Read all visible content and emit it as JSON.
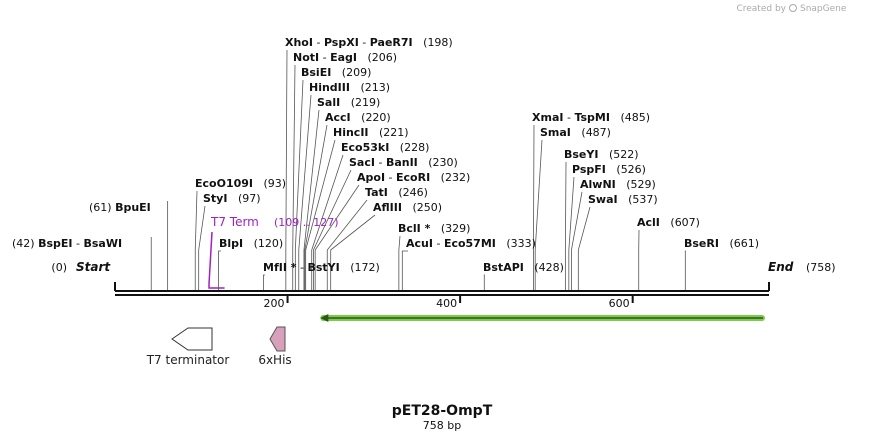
{
  "credit": {
    "text": "Created by",
    "brand": "SnapGene"
  },
  "plasmid": {
    "name": "pET28-OmpT",
    "size_text": "758 bp",
    "length": 758
  },
  "ends": {
    "start_label": "Start",
    "start_pos": "(0)",
    "end_label": "End",
    "end_pos": "(758)"
  },
  "axis": {
    "ticks": [
      "200",
      "400",
      "600"
    ]
  },
  "sites": [
    {
      "parts": [
        {
          "t": "BspEI",
          "b": true
        },
        {
          "t": " - ",
          "b": false
        },
        {
          "t": "BsaWI",
          "b": true
        },
        {
          "t": "   (42)",
          "b": false,
          "first": true
        }
      ],
      "bp": 42
    },
    {
      "parts": [
        {
          "t": "BpuEI",
          "b": true
        },
        {
          "t": "   (61)",
          "b": false,
          "first": true
        }
      ],
      "bp": 61
    },
    {
      "parts": [
        {
          "t": "EcoO109I",
          "b": true
        },
        {
          "t": "   (93)",
          "b": false
        }
      ],
      "bp": 93
    },
    {
      "parts": [
        {
          "t": "StyI",
          "b": true
        },
        {
          "t": "   (97)",
          "b": false
        }
      ],
      "bp": 97
    },
    {
      "parts": [
        {
          "t": "BlpI",
          "b": true
        },
        {
          "t": "   (120)",
          "b": false
        }
      ],
      "bp": 120
    },
    {
      "parts": [
        {
          "t": "MfII *",
          "b": true
        },
        {
          "t": " - ",
          "b": false
        },
        {
          "t": "BstYI",
          "b": true
        },
        {
          "t": "   (172)",
          "b": false
        }
      ],
      "bp": 172
    },
    {
      "parts": [
        {
          "t": "XhoI",
          "b": true
        },
        {
          "t": " - ",
          "b": false
        },
        {
          "t": "PspXI",
          "b": true
        },
        {
          "t": " - ",
          "b": false
        },
        {
          "t": "PaeR7I",
          "b": true
        },
        {
          "t": "   (198)",
          "b": false
        }
      ],
      "bp": 198
    },
    {
      "parts": [
        {
          "t": "NotI",
          "b": true
        },
        {
          "t": " - ",
          "b": false
        },
        {
          "t": "EagI",
          "b": true
        },
        {
          "t": "   (206)",
          "b": false
        }
      ],
      "bp": 206
    },
    {
      "parts": [
        {
          "t": "BsiEI",
          "b": true
        },
        {
          "t": "   (209)",
          "b": false
        }
      ],
      "bp": 209
    },
    {
      "parts": [
        {
          "t": "HindIII",
          "b": true
        },
        {
          "t": "   (213)",
          "b": false
        }
      ],
      "bp": 213
    },
    {
      "parts": [
        {
          "t": "SalI",
          "b": true
        },
        {
          "t": "   (219)",
          "b": false
        }
      ],
      "bp": 219
    },
    {
      "parts": [
        {
          "t": "AccI",
          "b": true
        },
        {
          "t": "   (220)",
          "b": false
        }
      ],
      "bp": 220
    },
    {
      "parts": [
        {
          "t": "HincII",
          "b": true
        },
        {
          "t": "   (221)",
          "b": false
        }
      ],
      "bp": 221
    },
    {
      "parts": [
        {
          "t": "Eco53kI",
          "b": true
        },
        {
          "t": "   (228)",
          "b": false
        }
      ],
      "bp": 228
    },
    {
      "parts": [
        {
          "t": "SacI",
          "b": true
        },
        {
          "t": " - ",
          "b": false
        },
        {
          "t": "BanII",
          "b": true
        },
        {
          "t": "   (230)",
          "b": false
        }
      ],
      "bp": 230
    },
    {
      "parts": [
        {
          "t": "ApoI",
          "b": true
        },
        {
          "t": " - ",
          "b": false
        },
        {
          "t": "EcoRI",
          "b": true
        },
        {
          "t": "   (232)",
          "b": false
        }
      ],
      "bp": 232
    },
    {
      "parts": [
        {
          "t": "TatI",
          "b": true
        },
        {
          "t": "   (246)",
          "b": false
        }
      ],
      "bp": 246
    },
    {
      "parts": [
        {
          "t": "AflIII",
          "b": true
        },
        {
          "t": "   (250)",
          "b": false
        }
      ],
      "bp": 250
    },
    {
      "parts": [
        {
          "t": "BclI *",
          "b": true
        },
        {
          "t": "   (329)",
          "b": false
        }
      ],
      "bp": 329
    },
    {
      "parts": [
        {
          "t": "AcuI",
          "b": true
        },
        {
          "t": " - ",
          "b": false
        },
        {
          "t": "Eco57MI",
          "b": true
        },
        {
          "t": "   (333)",
          "b": false
        }
      ],
      "bp": 333
    },
    {
      "parts": [
        {
          "t": "BstAPI",
          "b": true
        },
        {
          "t": "   (428)",
          "b": false
        }
      ],
      "bp": 428
    },
    {
      "parts": [
        {
          "t": "XmaI",
          "b": true
        },
        {
          "t": " - ",
          "b": false
        },
        {
          "t": "TspMI",
          "b": true
        },
        {
          "t": "   (485)",
          "b": false
        }
      ],
      "bp": 485
    },
    {
      "parts": [
        {
          "t": "SmaI",
          "b": true
        },
        {
          "t": "   (487)",
          "b": false
        }
      ],
      "bp": 487
    },
    {
      "parts": [
        {
          "t": "BseYI",
          "b": true
        },
        {
          "t": "   (522)",
          "b": false
        }
      ],
      "bp": 522
    },
    {
      "parts": [
        {
          "t": "PspFI",
          "b": true
        },
        {
          "t": "   (526)",
          "b": false
        }
      ],
      "bp": 526
    },
    {
      "parts": [
        {
          "t": "AlwNI",
          "b": true
        },
        {
          "t": "   (529)",
          "b": false
        }
      ],
      "bp": 529
    },
    {
      "parts": [
        {
          "t": "SwaI",
          "b": true
        },
        {
          "t": "   (537)",
          "b": false
        }
      ],
      "bp": 537
    },
    {
      "parts": [
        {
          "t": "AclI",
          "b": true
        },
        {
          "t": "   (607)",
          "b": false
        }
      ],
      "bp": 607
    },
    {
      "parts": [
        {
          "t": "BseRI",
          "b": true
        },
        {
          "t": "   (661)",
          "b": false
        }
      ],
      "bp": 661
    }
  ],
  "t7_term_label": {
    "name": "T7 Term",
    "range": "(109 .. 127)",
    "start_bp": 109,
    "end_bp": 127,
    "color": "#a020c0"
  },
  "features": [
    {
      "label": "T7 terminator",
      "kind": "terminator"
    },
    {
      "label": "6xHis",
      "kind": "tag",
      "color": "#d9a0bb"
    }
  ],
  "orf": {
    "start_bp": 238,
    "end_bp": 758,
    "direction": "reverse",
    "color": "#7ec850"
  }
}
